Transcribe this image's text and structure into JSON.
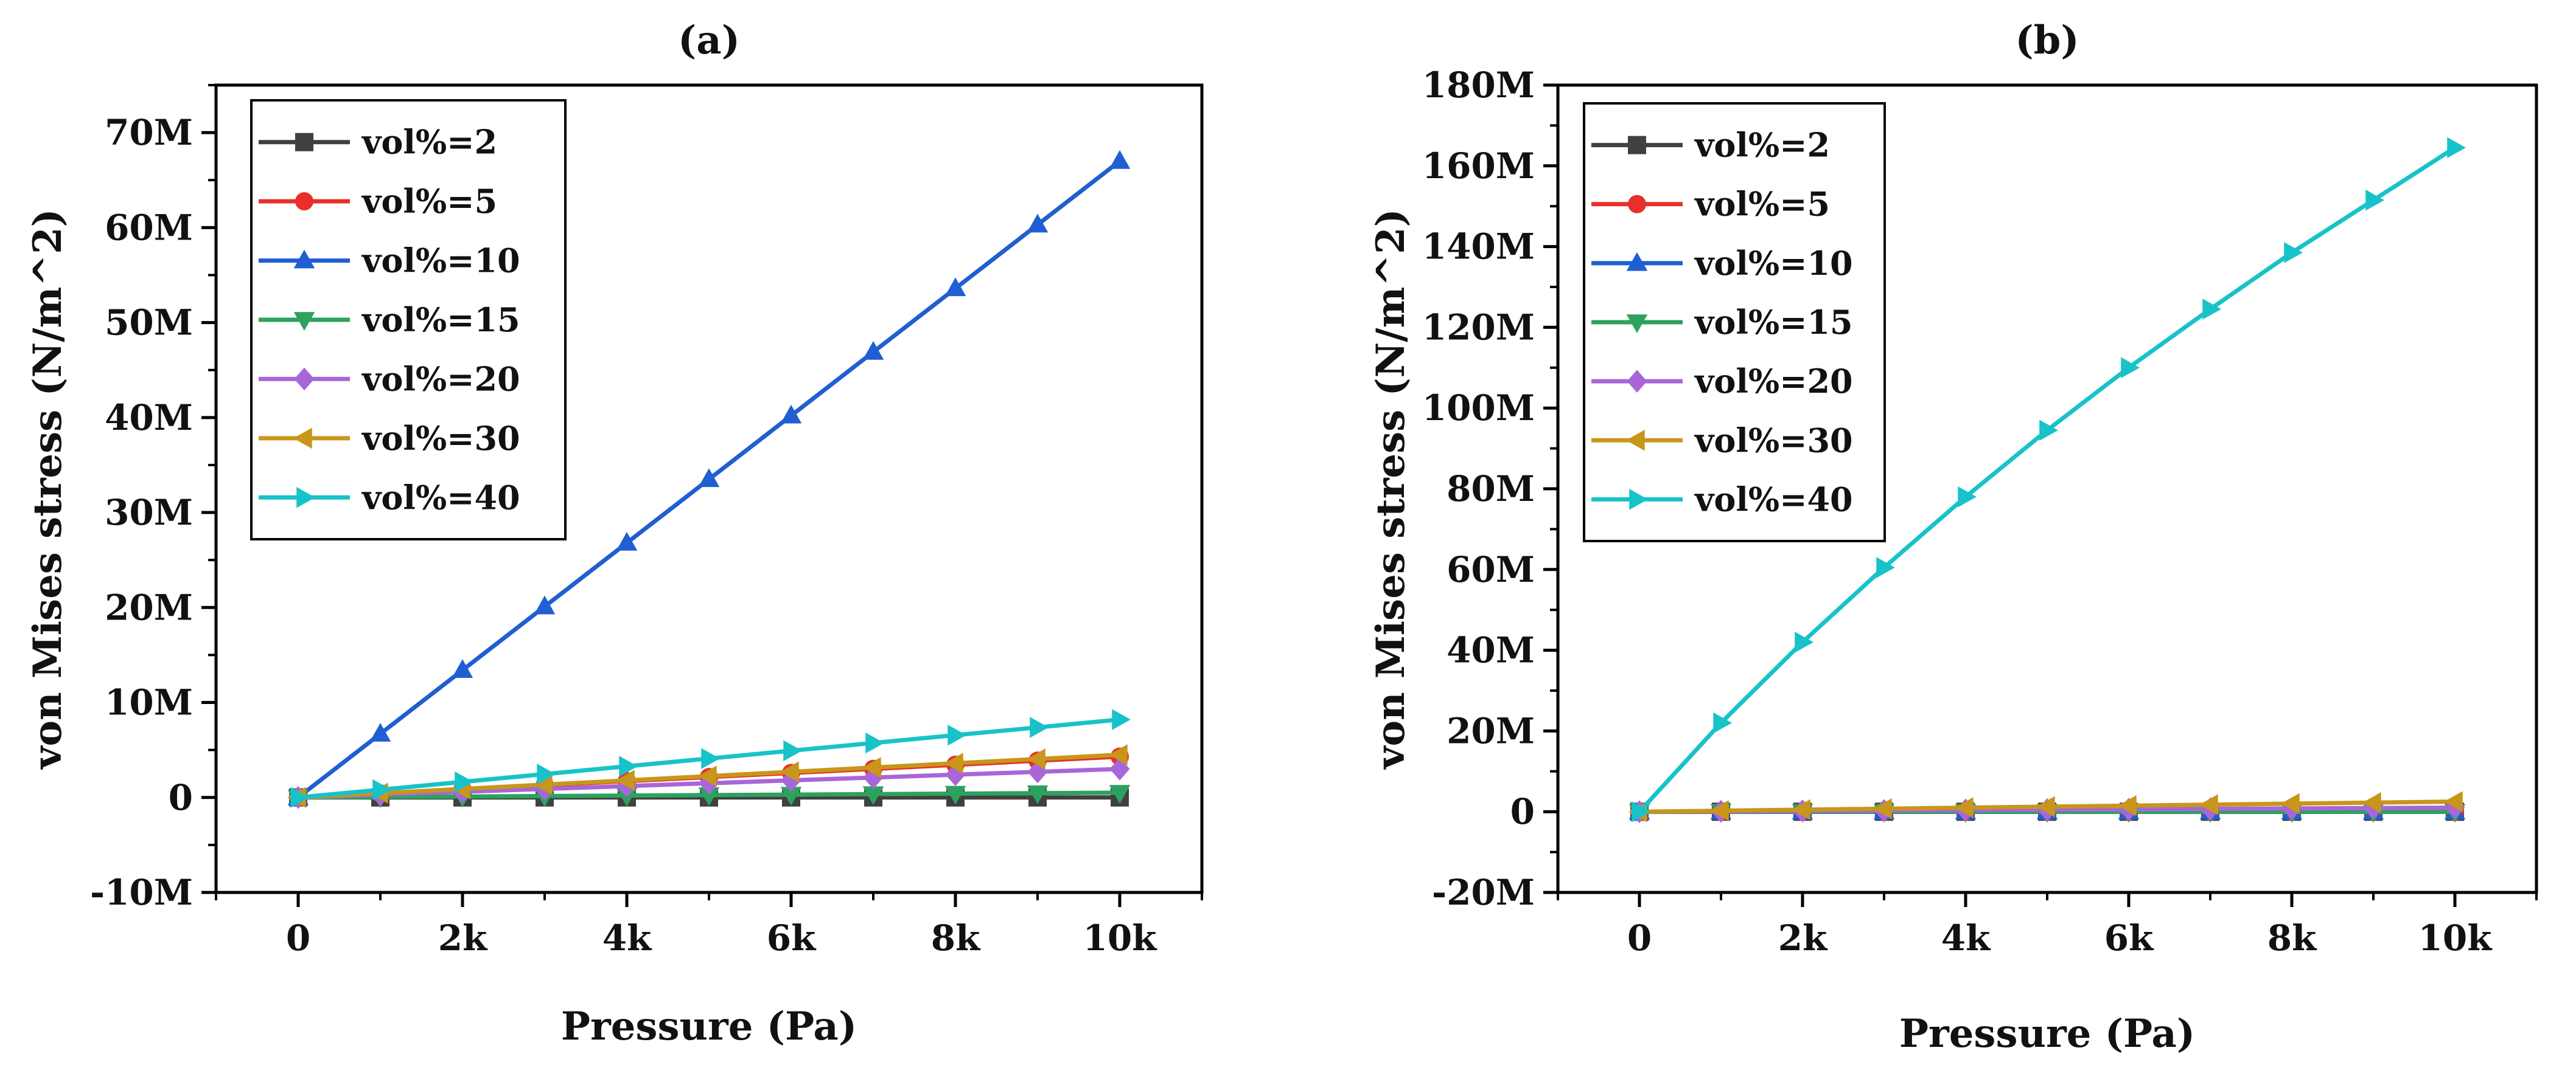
{
  "chart_data": [
    {
      "type": "line",
      "title": "(a)",
      "xlabel": "Pressure (Pa)",
      "ylabel": "von Mises stress (N/m^2)",
      "xlim": [
        -1000,
        11000
      ],
      "ylim": [
        -10000000,
        75000000
      ],
      "x_ticks": [
        0,
        2000,
        4000,
        6000,
        8000,
        10000
      ],
      "x_tick_labels": [
        "0",
        "2k",
        "4k",
        "6k",
        "8k",
        "10k"
      ],
      "y_ticks": [
        -10000000,
        0,
        10000000,
        20000000,
        30000000,
        40000000,
        50000000,
        60000000,
        70000000
      ],
      "y_tick_labels": [
        "-10M",
        "0",
        "10M",
        "20M",
        "30M",
        "40M",
        "50M",
        "60M",
        "70M"
      ],
      "legend_position": "top-left",
      "grid": false,
      "x": [
        0,
        1000,
        2000,
        3000,
        4000,
        5000,
        6000,
        7000,
        8000,
        9000,
        10000
      ],
      "series": [
        {
          "name": "vol%=2",
          "color": "#404040",
          "marker": "square",
          "values": [
            0,
            0,
            0,
            0,
            0,
            0,
            0,
            0,
            0,
            0,
            0
          ]
        },
        {
          "name": "vol%=5",
          "color": "#e8302a",
          "marker": "circle",
          "values": [
            0,
            430000,
            860000,
            1290000,
            1720000,
            2150000,
            2580000,
            3010000,
            3440000,
            3870000,
            4300000
          ]
        },
        {
          "name": "vol%=10",
          "color": "#1f5fd1",
          "marker": "triangle-up",
          "values": [
            0,
            6700000,
            13400000,
            20100000,
            26800000,
            33500000,
            40200000,
            46900000,
            53600000,
            60300000,
            67000000
          ]
        },
        {
          "name": "vol%=15",
          "color": "#2ca25f",
          "marker": "triangle-down",
          "values": [
            0,
            50000,
            100000,
            150000,
            200000,
            250000,
            300000,
            350000,
            400000,
            450000,
            500000
          ]
        },
        {
          "name": "vol%=20",
          "color": "#a866d9",
          "marker": "diamond",
          "values": [
            0,
            300000,
            600000,
            900000,
            1200000,
            1500000,
            1800000,
            2100000,
            2400000,
            2700000,
            3000000
          ]
        },
        {
          "name": "vol%=30",
          "color": "#c8961a",
          "marker": "triangle-left",
          "values": [
            0,
            450000,
            900000,
            1350000,
            1800000,
            2250000,
            2700000,
            3150000,
            3600000,
            4050000,
            4500000
          ]
        },
        {
          "name": "vol%=40",
          "color": "#17c3c9",
          "marker": "triangle-right",
          "values": [
            0,
            820000,
            1640000,
            2460000,
            3280000,
            4100000,
            4920000,
            5740000,
            6560000,
            7380000,
            8200000
          ]
        }
      ]
    },
    {
      "type": "line",
      "title": "(b)",
      "xlabel": "Pressure (Pa)",
      "ylabel": "von Mises stress (N/m^2)",
      "xlim": [
        -1000,
        11000
      ],
      "ylim": [
        -20000000,
        180000000
      ],
      "x_ticks": [
        0,
        2000,
        4000,
        6000,
        8000,
        10000
      ],
      "x_tick_labels": [
        "0",
        "2k",
        "4k",
        "6k",
        "8k",
        "10k"
      ],
      "y_ticks": [
        -20000000,
        0,
        20000000,
        40000000,
        60000000,
        80000000,
        100000000,
        120000000,
        140000000,
        160000000,
        180000000
      ],
      "y_tick_labels": [
        "-20M",
        "0",
        "20M",
        "40M",
        "60M",
        "80M",
        "100M",
        "120M",
        "140M",
        "160M",
        "180M"
      ],
      "legend_position": "top-left",
      "grid": false,
      "x": [
        0,
        1000,
        2000,
        3000,
        4000,
        5000,
        6000,
        7000,
        8000,
        9000,
        10000
      ],
      "series": [
        {
          "name": "vol%=2",
          "color": "#404040",
          "marker": "square",
          "values": [
            0,
            0,
            0,
            0,
            0,
            0,
            0,
            0,
            0,
            0,
            0
          ]
        },
        {
          "name": "vol%=5",
          "color": "#e8302a",
          "marker": "circle",
          "values": [
            0,
            0,
            0,
            0,
            0,
            0,
            0,
            0,
            0,
            0,
            0
          ]
        },
        {
          "name": "vol%=10",
          "color": "#1f5fd1",
          "marker": "triangle-up",
          "values": [
            0,
            0,
            0,
            0,
            0,
            0,
            0,
            0,
            0,
            0,
            0
          ]
        },
        {
          "name": "vol%=15",
          "color": "#2ca25f",
          "marker": "triangle-down",
          "values": [
            0,
            0,
            0,
            0,
            0,
            0,
            0,
            0,
            0,
            0,
            0
          ]
        },
        {
          "name": "vol%=20",
          "color": "#a866d9",
          "marker": "diamond",
          "values": [
            0,
            100000,
            200000,
            300000,
            400000,
            500000,
            600000,
            700000,
            800000,
            900000,
            1000000
          ]
        },
        {
          "name": "vol%=30",
          "color": "#c8961a",
          "marker": "triangle-left",
          "values": [
            0,
            250000,
            500000,
            750000,
            1000000,
            1250000,
            1500000,
            1750000,
            2000000,
            2250000,
            2500000
          ]
        },
        {
          "name": "vol%=40",
          "color": "#17c3c9",
          "marker": "triangle-right",
          "values": [
            0,
            22000000,
            42000000,
            60500000,
            78000000,
            94500000,
            110000000,
            124500000,
            138500000,
            151500000,
            164500000
          ]
        }
      ]
    }
  ]
}
